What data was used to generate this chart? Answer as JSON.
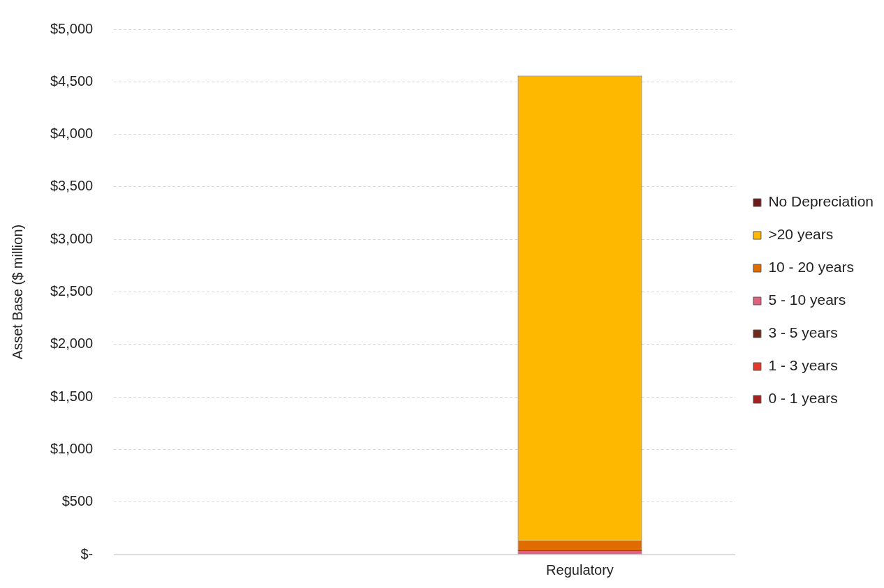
{
  "chart_data": {
    "type": "bar",
    "ylabel": "Asset Base ($ million)",
    "categories": [
      null,
      "Regulatory"
    ],
    "stacked": true,
    "series": [
      {
        "name": "0 - 1 years",
        "color": "#a52020",
        "values": [
          null,
          0
        ]
      },
      {
        "name": "1 - 3 years",
        "color": "#e03a2a",
        "values": [
          null,
          0
        ]
      },
      {
        "name": "3 - 5 years",
        "color": "#6b2a1a",
        "values": [
          null,
          0
        ]
      },
      {
        "name": "5 - 10 years",
        "color": "#e0607e",
        "values": [
          null,
          40
        ]
      },
      {
        "name": "10 - 20 years",
        "color": "#e06c00",
        "values": [
          null,
          94
        ]
      },
      {
        "name": ">20 years",
        "color": "#ffb800",
        "values": [
          null,
          4424
        ]
      },
      {
        "name": "No Depreciation",
        "color": "#6b1a1a",
        "values": [
          null,
          0
        ]
      }
    ],
    "ylim": [
      0,
      5000
    ],
    "yticks": [
      {
        "value": 0,
        "label": "$-"
      },
      {
        "value": 500,
        "label": "$500"
      },
      {
        "value": 1000,
        "label": "$1,000"
      },
      {
        "value": 1500,
        "label": "$1,500"
      },
      {
        "value": 2000,
        "label": "$2,000"
      },
      {
        "value": 2500,
        "label": "$2,500"
      },
      {
        "value": 3000,
        "label": "$3,000"
      },
      {
        "value": 3500,
        "label": "$3,500"
      },
      {
        "value": 4000,
        "label": "$4,000"
      },
      {
        "value": 4500,
        "label": "$4,500"
      },
      {
        "value": 5000,
        "label": "$5,000"
      }
    ],
    "grid": "y",
    "legend": "right"
  }
}
